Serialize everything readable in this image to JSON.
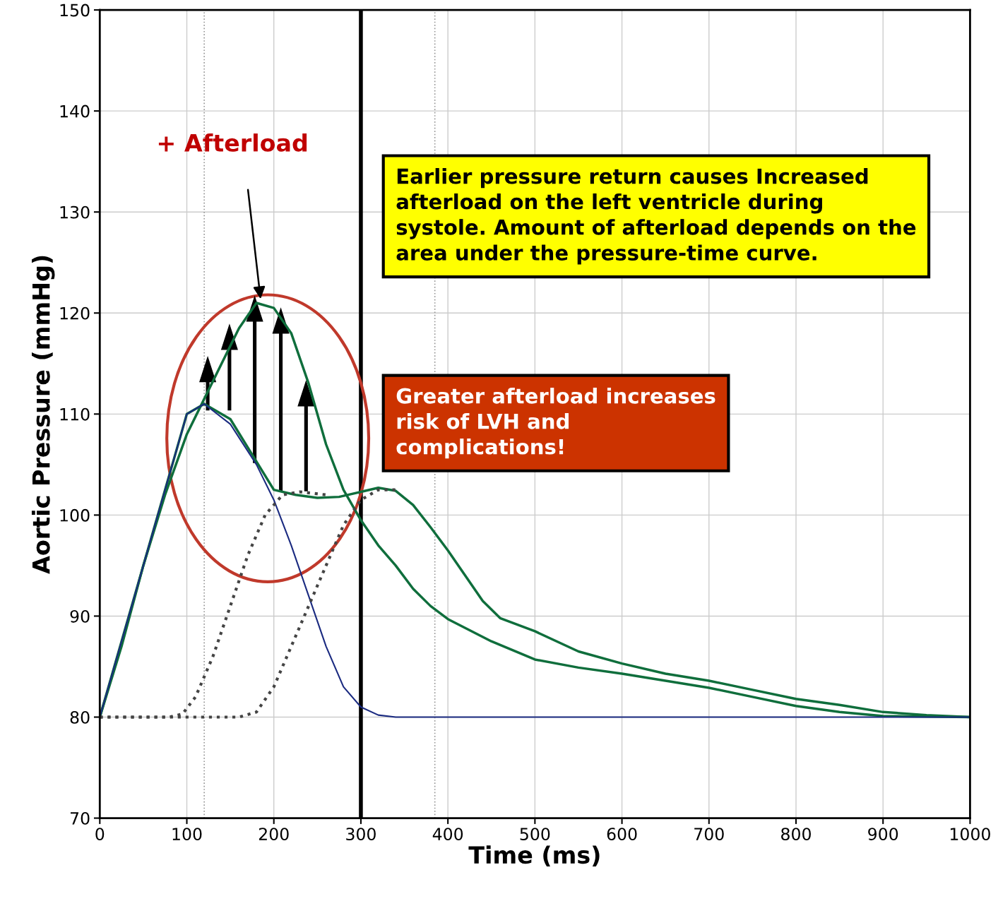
{
  "chart_data": {
    "type": "line",
    "xlabel": "Time (ms)",
    "ylabel": "Aortic Pressure (mmHg)",
    "xlim": [
      0,
      1000
    ],
    "ylim": [
      70,
      150
    ],
    "xticks": [
      0,
      100,
      200,
      300,
      400,
      500,
      600,
      700,
      800,
      900,
      1000
    ],
    "yticks": [
      70,
      80,
      90,
      100,
      110,
      120,
      130,
      140,
      150
    ],
    "grid": true,
    "series": [
      {
        "color": "#0f6e3c",
        "line_style": "solid",
        "x": [
          0,
          25,
          50,
          75,
          100,
          120,
          140,
          160,
          180,
          200,
          220,
          240,
          260,
          280,
          300,
          320,
          340,
          360,
          380,
          400,
          450,
          500,
          550,
          600,
          650,
          700,
          750,
          800,
          850,
          900,
          1000
        ],
        "values": [
          80,
          87,
          95,
          102,
          108,
          111.5,
          115,
          118.5,
          121,
          120.5,
          118,
          113,
          107,
          102.5,
          99.5,
          97,
          95,
          92.7,
          91,
          89.7,
          87.5,
          85.7,
          84.9,
          84.3,
          83.6,
          82.9,
          82,
          81.1,
          80.5,
          80.1,
          80
        ]
      },
      {
        "color": "#0f6e3c",
        "line_style": "solid",
        "x": [
          0,
          50,
          100,
          120,
          150,
          175,
          200,
          225,
          250,
          275,
          300,
          320,
          340,
          360,
          380,
          400,
          420,
          440,
          460,
          500,
          550,
          600,
          650,
          700,
          750,
          800,
          850,
          900,
          950,
          1000
        ],
        "values": [
          80,
          95,
          110,
          111,
          109.5,
          106,
          102.5,
          102,
          101.7,
          101.8,
          102.3,
          102.7,
          102.4,
          101,
          98.8,
          96.5,
          94,
          91.5,
          89.8,
          88.5,
          86.5,
          85.3,
          84.3,
          83.6,
          82.7,
          81.8,
          81.2,
          80.5,
          80.2,
          80
        ]
      },
      {
        "color": "#1a2a80",
        "line_style": "solid",
        "x": [
          0,
          50,
          100,
          120,
          150,
          180,
          200,
          220,
          240,
          260,
          280,
          300,
          320,
          340,
          1000
        ],
        "values": [
          80,
          95,
          110,
          111,
          109,
          105,
          101.5,
          97,
          92,
          87,
          83,
          81,
          80.2,
          80,
          80
        ]
      },
      {
        "color": "#444444",
        "line_style": "dotted",
        "x": [
          0,
          80,
          95,
          110,
          130,
          150,
          170,
          190,
          210,
          230,
          260
        ],
        "values": [
          80,
          80,
          80.3,
          82,
          86,
          91,
          96,
          100,
          102,
          102.3,
          102
        ]
      },
      {
        "color": "#444444",
        "line_style": "dotted",
        "x": [
          0,
          160,
          180,
          200,
          220,
          240,
          260,
          280,
          300,
          320,
          340
        ],
        "values": [
          80,
          80,
          80.5,
          83,
          87,
          91,
          95,
          99,
          101.5,
          102.5,
          102.5
        ]
      }
    ],
    "ref_lines": [
      {
        "axis": "x",
        "value": 120,
        "color": "#999999",
        "line_style": "dotted"
      },
      {
        "axis": "x",
        "value": 300,
        "color": "#000000",
        "line_style": "solid"
      },
      {
        "axis": "x",
        "value": 385,
        "color": "#999999",
        "line_style": "dotted"
      }
    ],
    "annotations": [
      "+ Afterload",
      "Earlier pressure return causes Increased afterload on the left ventricle during systole. Amount of afterload depends on the area under the pressure-time curve.",
      "Greater afterload increases risk of LVH and  complications!"
    ]
  }
}
